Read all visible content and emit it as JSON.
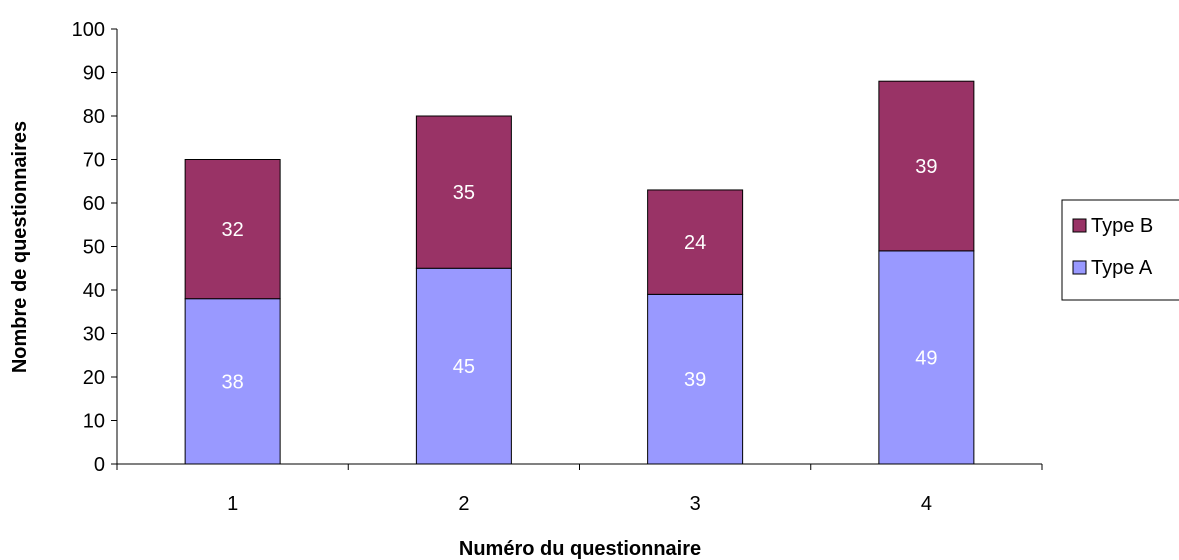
{
  "chart_data": {
    "type": "bar",
    "stacked": true,
    "title": "",
    "xlabel": "Numéro du questionnaire",
    "ylabel": "Nombre de questionnaires",
    "categories": [
      "1",
      "2",
      "3",
      "4"
    ],
    "ylim": [
      0,
      100
    ],
    "yticks": [
      "0",
      "10",
      "20",
      "30",
      "40",
      "50",
      "60",
      "70",
      "80",
      "90",
      "100"
    ],
    "grid": false,
    "legend_position": "right",
    "series": [
      {
        "name": "Type A",
        "values": [
          38,
          45,
          39,
          49
        ],
        "color": "#9999ff"
      },
      {
        "name": "Type B",
        "values": [
          32,
          35,
          24,
          39
        ],
        "color": "#993366"
      }
    ],
    "legend_order": [
      "Type B",
      "Type A"
    ]
  }
}
